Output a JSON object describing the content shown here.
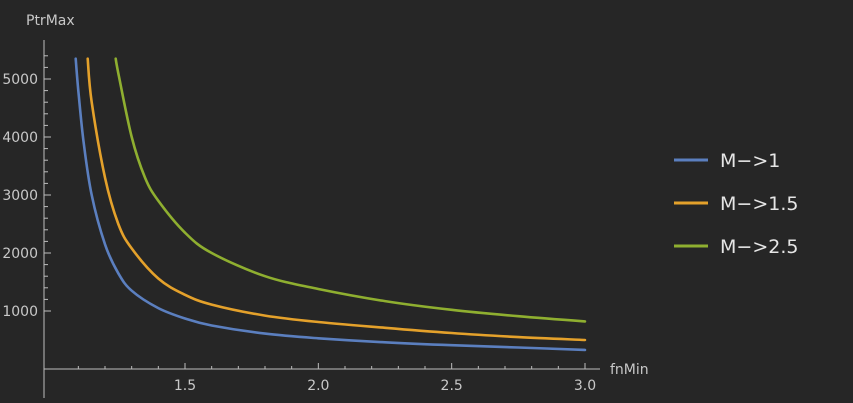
{
  "chart_data": {
    "type": "line",
    "title": "",
    "xlabel": "fnMin",
    "ylabel": "PtrMax",
    "xlim": [
      1.0,
      3.0
    ],
    "ylim": [
      0,
      5600
    ],
    "x_ticks": [
      1.5,
      2.0,
      2.5,
      3.0
    ],
    "x_tick_labels": [
      "1.5",
      "2.0",
      "2.5",
      "3.0"
    ],
    "y_ticks": [
      1000,
      2000,
      3000,
      4000,
      5000
    ],
    "y_tick_labels": [
      "1000",
      "2000",
      "3000",
      "4000",
      "5000"
    ],
    "grid": false,
    "legend_position": "right",
    "series": [
      {
        "name": "M−>1",
        "color": "#5b7fbf",
        "x": [
          1.09,
          1.1,
          1.12,
          1.15,
          1.2,
          1.25,
          1.3,
          1.4,
          1.5,
          1.6,
          1.8,
          2.0,
          2.25,
          2.5,
          2.75,
          3.0
        ],
        "y": [
          5350,
          4800,
          3900,
          3000,
          2150,
          1650,
          1350,
          1050,
          870,
          750,
          610,
          530,
          460,
          410,
          370,
          330
        ]
      },
      {
        "name": "M−>1.5",
        "color": "#e4a12b",
        "x": [
          1.135,
          1.15,
          1.2,
          1.25,
          1.3,
          1.4,
          1.5,
          1.6,
          1.8,
          2.0,
          2.25,
          2.5,
          2.75,
          3.0
        ],
        "y": [
          5350,
          4600,
          3300,
          2500,
          2080,
          1560,
          1280,
          1110,
          920,
          810,
          710,
          620,
          550,
          500
        ]
      },
      {
        "name": "M−>2.5",
        "color": "#8faf30",
        "x": [
          1.24,
          1.25,
          1.3,
          1.35,
          1.4,
          1.5,
          1.6,
          1.8,
          2.0,
          2.25,
          2.5,
          2.75,
          3.0
        ],
        "y": [
          5350,
          5100,
          4000,
          3300,
          2900,
          2350,
          2000,
          1600,
          1380,
          1170,
          1020,
          910,
          820
        ]
      }
    ]
  }
}
